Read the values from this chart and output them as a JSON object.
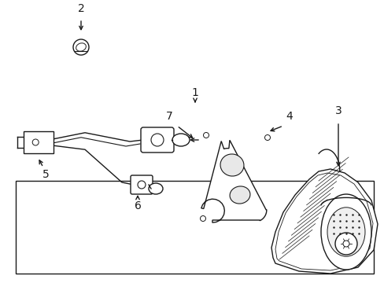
{
  "bg_color": "#ffffff",
  "line_color": "#1a1a1a",
  "fig_width": 4.89,
  "fig_height": 3.6,
  "dpi": 100,
  "lw": 1.0
}
